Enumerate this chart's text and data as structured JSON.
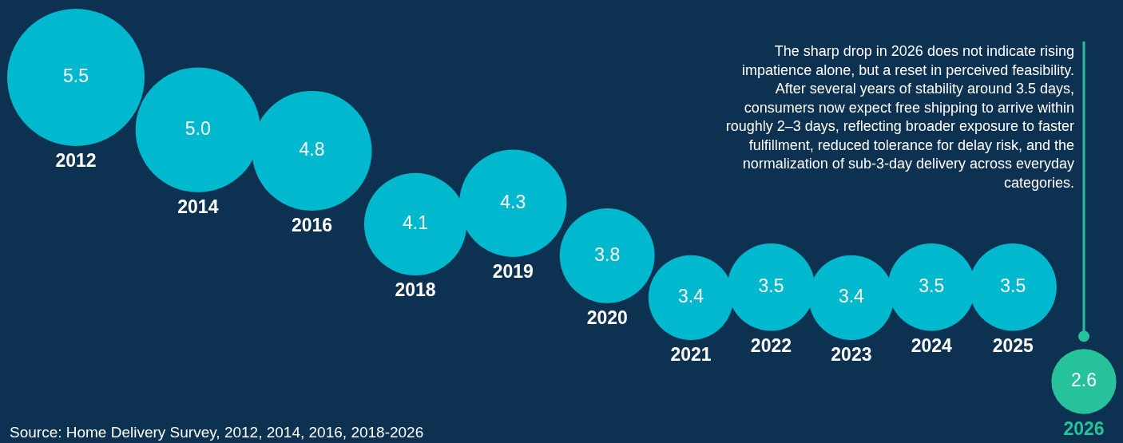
{
  "chart_data": {
    "type": "other",
    "categories": [
      "2012",
      "2014",
      "2016",
      "2018",
      "2019",
      "2020",
      "2021",
      "2022",
      "2023",
      "2024",
      "2025",
      "2026"
    ],
    "values": [
      5.5,
      5.0,
      4.8,
      4.1,
      4.3,
      3.8,
      3.4,
      3.5,
      3.4,
      3.5,
      3.5,
      2.6
    ],
    "value_labels": [
      "5.5",
      "5.0",
      "4.8",
      "4.1",
      "4.3",
      "3.8",
      "3.4",
      "3.5",
      "3.4",
      "3.5",
      "3.5",
      "2.6"
    ],
    "colors": [
      "#00b9cf",
      "#00b9cf",
      "#00b9cf",
      "#00b9cf",
      "#00b9cf",
      "#00b9cf",
      "#00b9cf",
      "#00b9cf",
      "#00b9cf",
      "#00b9cf",
      "#00b9cf",
      "#26c29b"
    ],
    "annotations": [
      "The sharp drop in 2026 does not indicate rising impatience alone, but a reset in perceived feasibility. After several years of stability around 3.5 days, consumers now expect free shipping to arrive within roughly 2–3 days, reflecting broader exposure to faster fulfillment, reduced tolerance for delay risk, and the normalization of sub-3-day delivery across everyday categories.",
      "Source: Home Delivery Survey, 2012, 2014, 2016, 2018-2026"
    ]
  }
}
